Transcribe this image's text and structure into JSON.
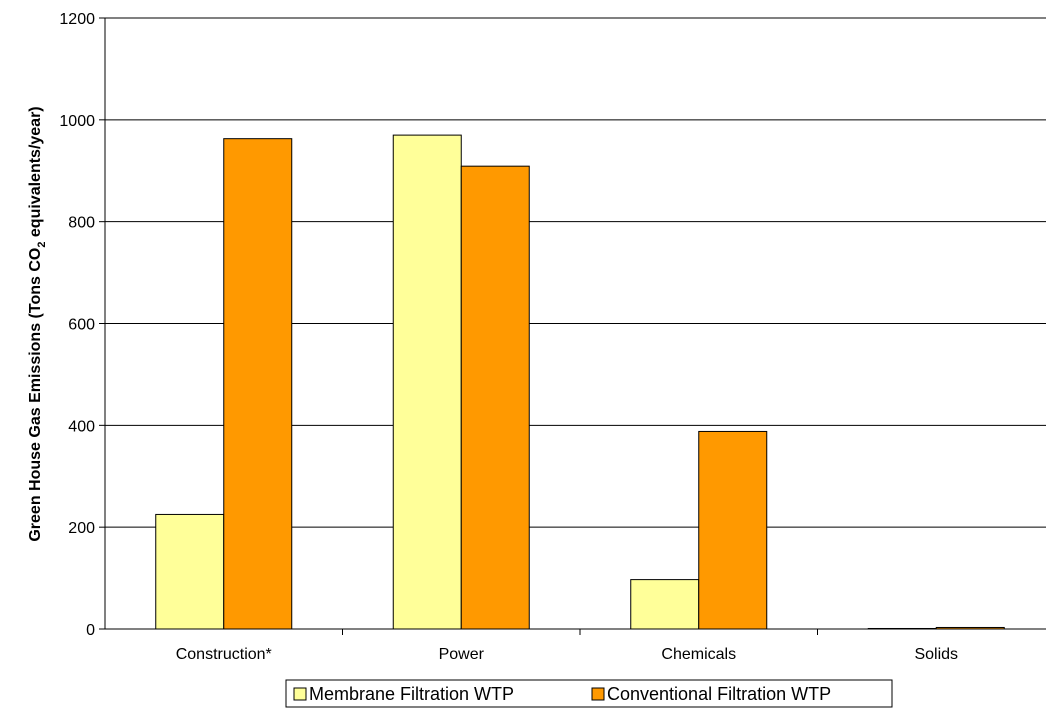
{
  "chart_data": {
    "type": "bar",
    "categories": [
      "Construction*",
      "Power",
      "Chemicals",
      "Solids"
    ],
    "series": [
      {
        "name": "Membrane Filtration WTP",
        "values": [
          225,
          970,
          97,
          1
        ],
        "color": "#FFFF99"
      },
      {
        "name": "Conventional Filtration WTP",
        "values": [
          963,
          909,
          388,
          3
        ],
        "color": "#FF9900"
      }
    ],
    "ylabel": {
      "prefix": "Green House Gas Emissions (Tons CO",
      "subscript": "2",
      "suffix": " equivalents/year)"
    },
    "xlabel": "",
    "ylim": [
      0,
      1200
    ],
    "yticks": [
      0,
      200,
      400,
      600,
      800,
      1000,
      1200
    ],
    "grid": true,
    "legend_position": "bottom"
  }
}
